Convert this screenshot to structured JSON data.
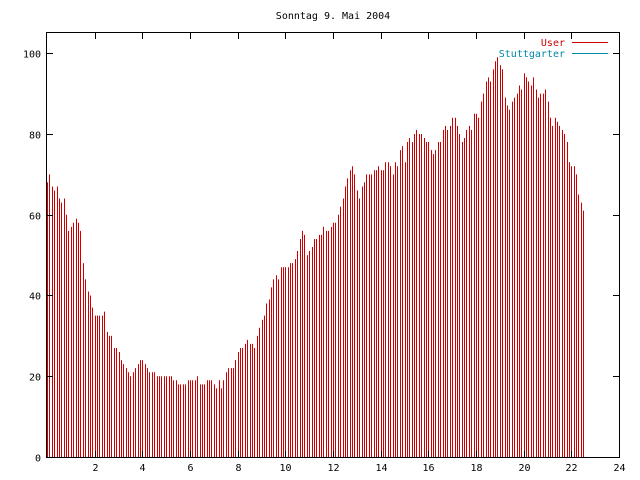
{
  "chart_data": {
    "type": "bar",
    "title": "Sonntag 9. Mai 2004",
    "xlabel": "",
    "ylabel": "",
    "xlim": [
      0,
      24
    ],
    "ylim": [
      0,
      105
    ],
    "x_ticks": [
      2,
      4,
      6,
      8,
      10,
      12,
      14,
      16,
      18,
      20,
      22,
      24
    ],
    "y_ticks": [
      0,
      20,
      40,
      60,
      80,
      100
    ],
    "grid": false,
    "legend_position": "top-right",
    "series": [
      {
        "name": "User",
        "color": "#cc0000",
        "values": [
          68,
          70,
          67,
          66,
          67,
          64,
          63,
          64,
          60,
          56,
          57,
          58,
          59,
          58,
          56,
          48,
          44,
          41,
          40,
          37,
          35,
          35,
          35,
          35,
          36,
          31,
          30,
          30,
          27,
          27,
          26,
          24,
          23,
          22,
          21,
          20,
          21,
          22,
          23,
          24,
          24,
          23,
          22,
          21,
          21,
          21,
          20,
          20,
          20,
          20,
          20,
          20,
          20,
          19,
          19,
          18,
          18,
          18,
          18,
          19,
          19,
          19,
          19,
          20,
          18,
          18,
          18,
          19,
          19,
          19,
          18,
          17,
          19,
          17,
          19,
          21,
          22,
          22,
          22,
          24,
          26,
          27,
          27,
          28,
          29,
          28,
          28,
          27,
          30,
          32,
          34,
          35,
          38,
          39,
          42,
          44,
          45,
          44,
          47,
          47,
          47,
          47,
          48,
          48,
          49,
          51,
          54,
          56,
          55,
          50,
          51,
          52,
          54,
          54,
          55,
          55,
          57,
          56,
          56,
          57,
          58,
          58,
          60,
          62,
          64,
          67,
          69,
          71,
          72,
          70,
          66,
          64,
          67,
          68,
          70,
          70,
          70,
          71,
          71,
          72,
          71,
          71,
          73,
          73,
          72,
          70,
          73,
          72,
          76,
          77,
          73,
          78,
          79,
          78,
          80,
          81,
          80,
          80,
          79,
          78,
          78,
          76,
          75,
          76,
          78,
          78,
          81,
          82,
          81,
          82,
          84,
          84,
          82,
          80,
          78,
          79,
          81,
          82,
          81,
          85,
          85,
          84,
          88,
          90,
          93,
          94,
          93,
          96,
          98,
          99,
          97,
          96,
          89,
          87,
          86,
          88,
          89,
          90,
          92,
          91,
          95,
          94,
          93,
          92,
          94,
          91,
          89,
          90,
          90,
          91,
          88,
          84,
          82,
          84,
          83,
          82,
          81,
          80,
          78,
          73,
          72,
          72,
          70,
          65,
          63,
          61
        ],
        "start_x": 0,
        "step_minutes": 6
      },
      {
        "name": "Stuttgarter",
        "color": "#0088aa",
        "values": []
      }
    ]
  }
}
